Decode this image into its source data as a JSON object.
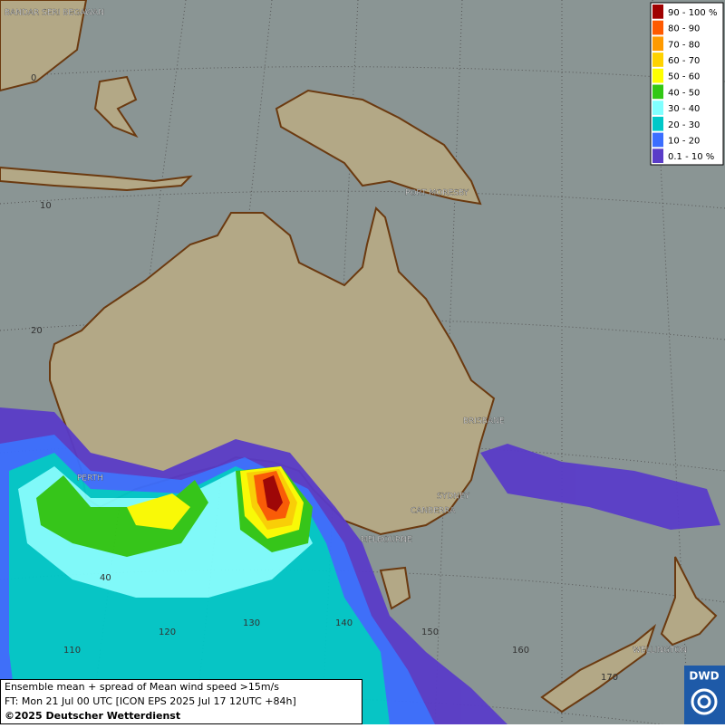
{
  "legend": {
    "items": [
      {
        "label": "90 - 100 %",
        "color": "#a00000"
      },
      {
        "label": "80 - 90",
        "color": "#ff5a00"
      },
      {
        "label": "70 - 80",
        "color": "#ff9a00"
      },
      {
        "label": "60 - 70",
        "color": "#ffd200"
      },
      {
        "label": "50 - 60",
        "color": "#ffff00"
      },
      {
        "label": "40 - 50",
        "color": "#32c814"
      },
      {
        "label": "30 - 40",
        "color": "#80ffff"
      },
      {
        "label": "20 - 30",
        "color": "#00c8c8"
      },
      {
        "label": "10 - 20",
        "color": "#3c6eff"
      },
      {
        "label": "0.1 - 10 %",
        "color": "#5a3cc8"
      }
    ]
  },
  "places": [
    "BANDAR SERI BEGAWAN",
    "PORT MORESBY",
    "BRISBANE",
    "PERTH",
    "SYDNEY",
    "CANBERRA",
    "MELBOURNE",
    "WELLINGTON"
  ],
  "grid_labels": [
    "0",
    "10",
    "20",
    "40",
    "110",
    "120",
    "130",
    "140",
    "150",
    "160",
    "170"
  ],
  "caption": {
    "lines": [
      "Ensemble mean + spread of Mean wind speed >15m/s",
      "FT: Mon 21 Jul 00 UTC [ICON EPS 2025 Jul 17 12UTC +84h]"
    ],
    "copyright": "©2025 Deutscher Wetterdienst"
  },
  "logo": "DWD"
}
